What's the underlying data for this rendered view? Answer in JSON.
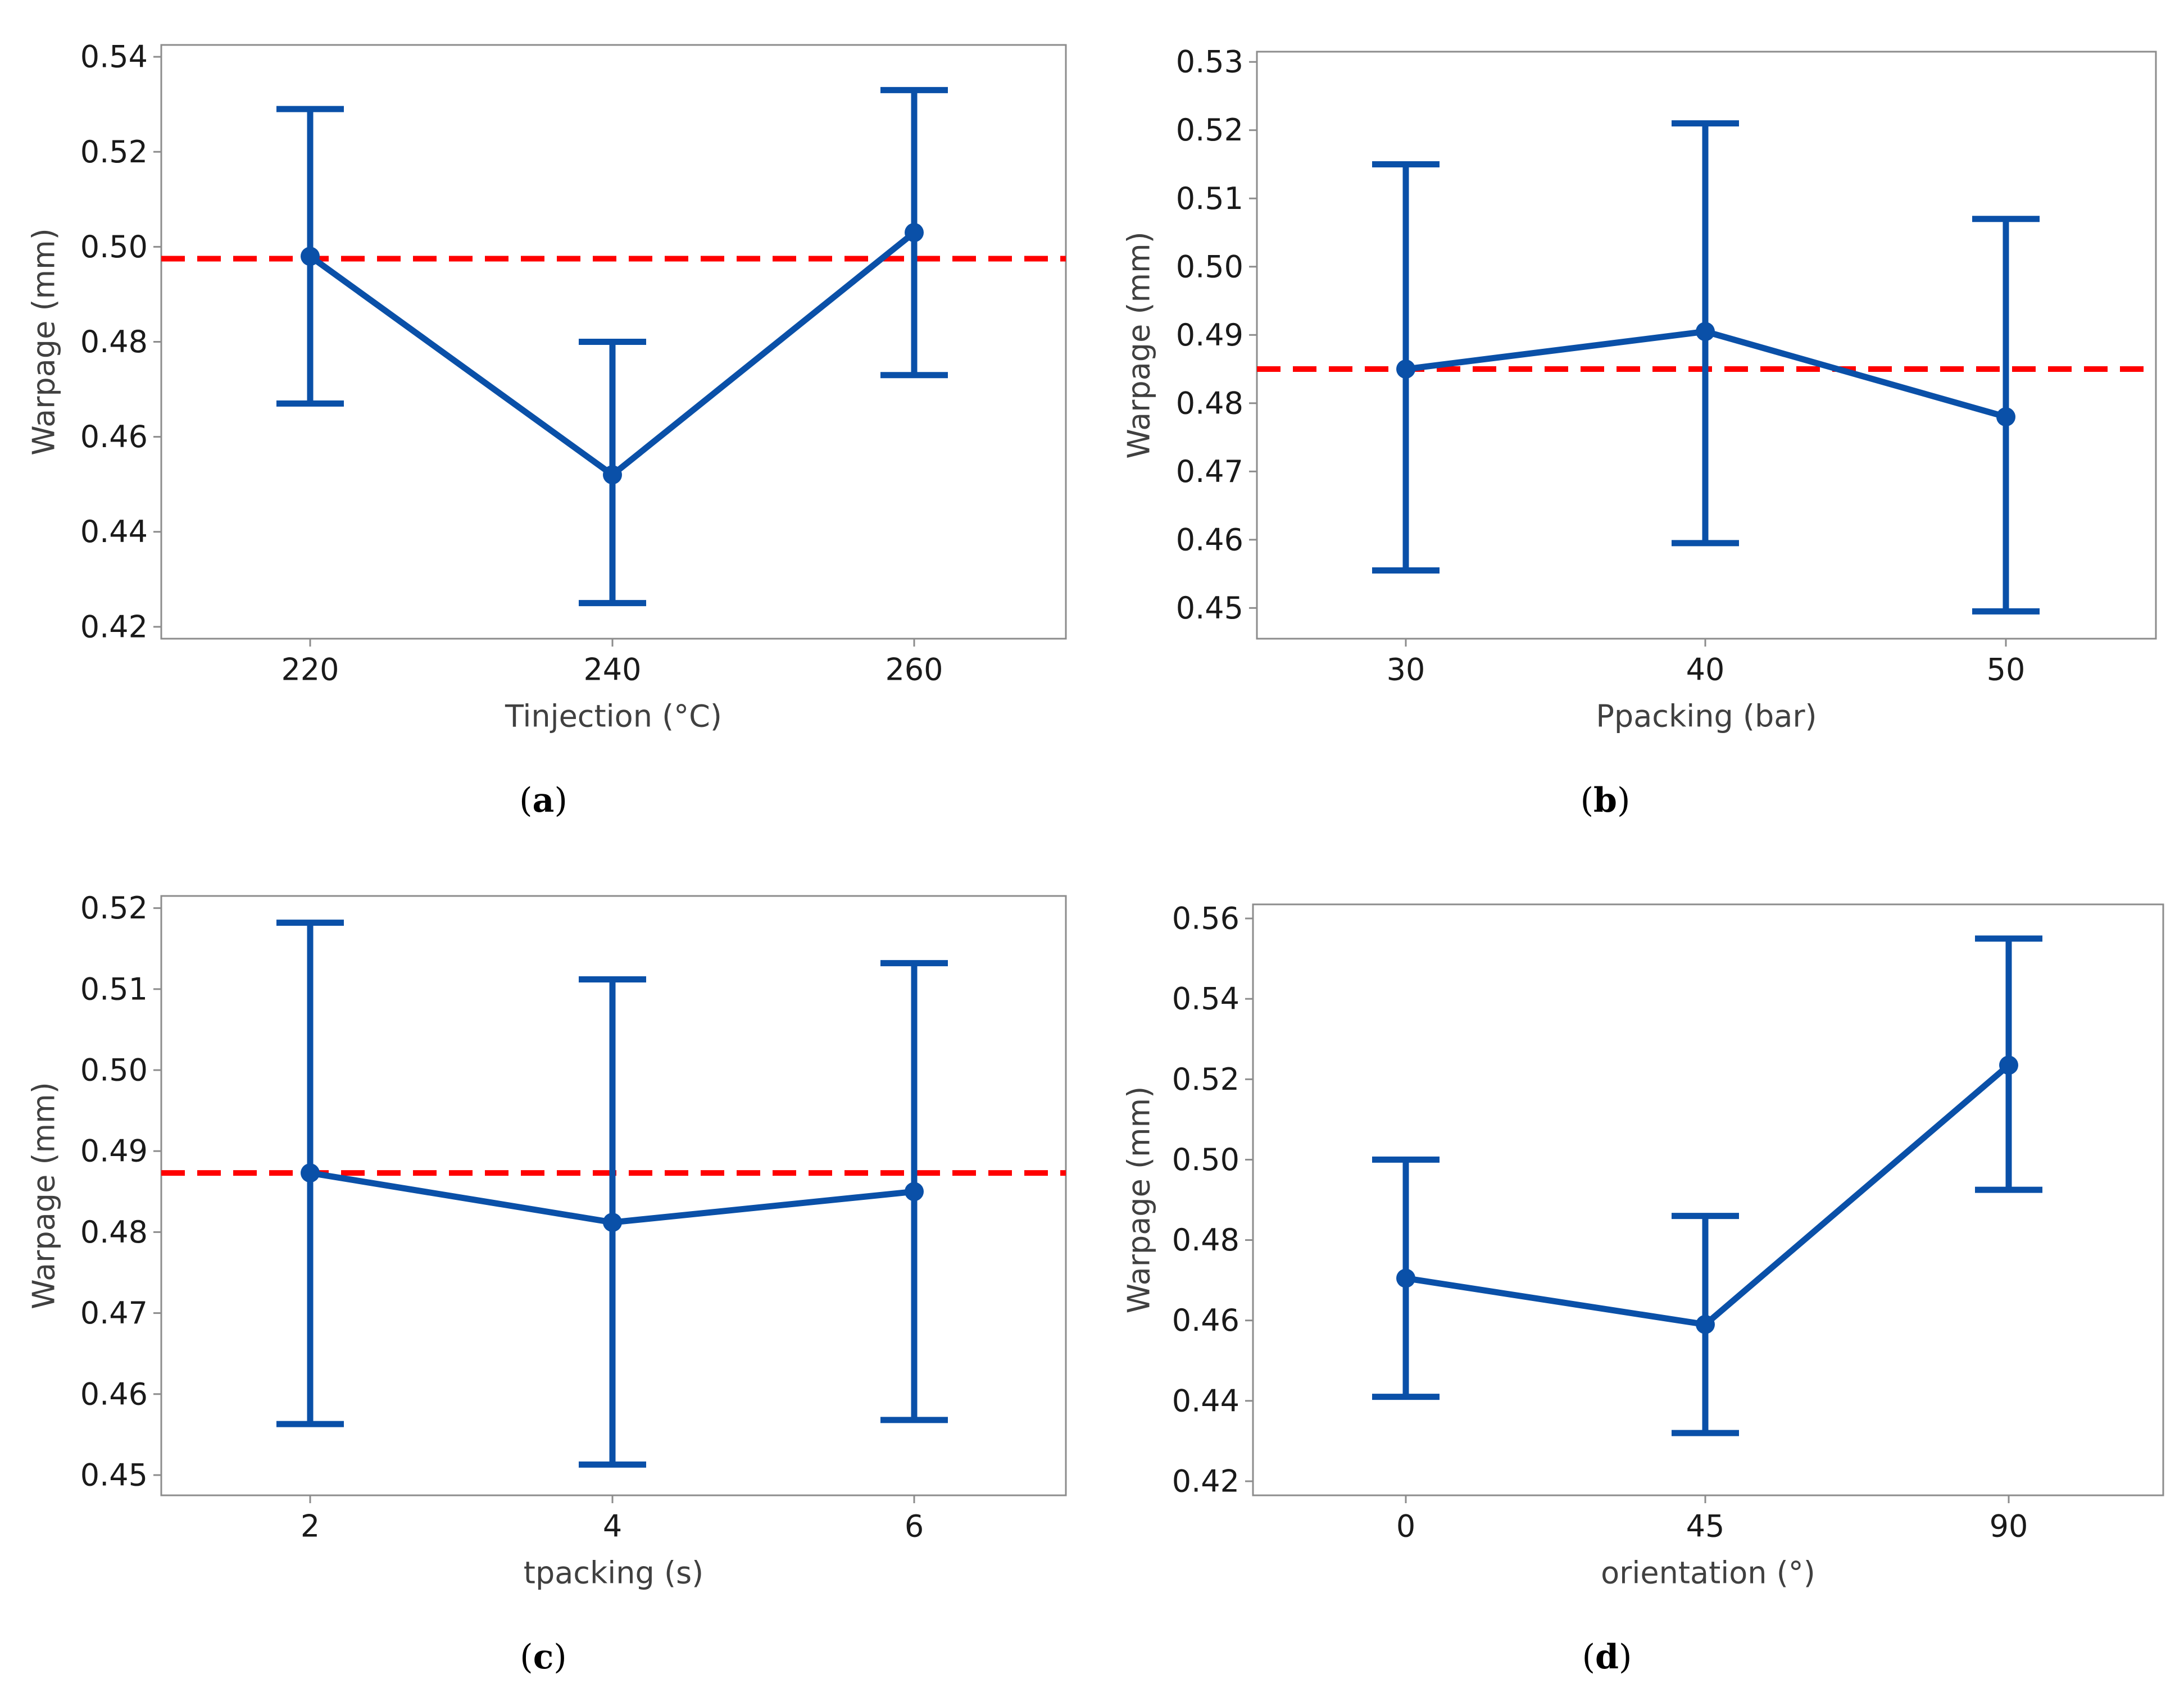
{
  "chart_data": [
    {
      "type": "line",
      "caption_letter": "a",
      "xlabel": "Tinjection (°C)",
      "ylabel": "Warpage (mm)",
      "categories": [
        "220",
        "240",
        "260"
      ],
      "series": [
        {
          "values": [
            0.498,
            0.452,
            0.503
          ],
          "error_low": [
            0.467,
            0.425,
            0.473
          ],
          "error_high": [
            0.529,
            0.48,
            0.533
          ]
        }
      ],
      "reference_line": 0.4975,
      "yticks": [
        0.42,
        0.44,
        0.46,
        0.48,
        0.5,
        0.52,
        0.54
      ],
      "ytick_labels": [
        "0.42",
        "0.44",
        "0.46",
        "0.48",
        "0.50",
        "0.52",
        "0.54"
      ],
      "ylim": [
        0.4175,
        0.5425
      ],
      "grid": false
    },
    {
      "type": "line",
      "caption_letter": "b",
      "xlabel": "Ppacking (bar)",
      "ylabel": "Warpage (mm)",
      "categories": [
        "30",
        "40",
        "50"
      ],
      "series": [
        {
          "values": [
            0.485,
            0.4905,
            0.478
          ],
          "error_low": [
            0.4555,
            0.4595,
            0.4495
          ],
          "error_high": [
            0.515,
            0.521,
            0.507
          ]
        }
      ],
      "reference_line": 0.485,
      "yticks": [
        0.45,
        0.46,
        0.47,
        0.48,
        0.49,
        0.5,
        0.51,
        0.52,
        0.53
      ],
      "ytick_labels": [
        "0.45",
        "0.46",
        "0.47",
        "0.48",
        "0.49",
        "0.50",
        "0.51",
        "0.52",
        "0.53"
      ],
      "ylim": [
        0.4455,
        0.5315
      ],
      "grid": false
    },
    {
      "type": "line",
      "caption_letter": "c",
      "xlabel": "tpacking (s)",
      "ylabel": "Warpage (mm)",
      "categories": [
        "2",
        "4",
        "6"
      ],
      "series": [
        {
          "values": [
            0.4873,
            0.4812,
            0.485
          ],
          "error_low": [
            0.4563,
            0.4513,
            0.4568
          ],
          "error_high": [
            0.5182,
            0.5112,
            0.5132
          ]
        }
      ],
      "reference_line": 0.4873,
      "yticks": [
        0.45,
        0.46,
        0.47,
        0.48,
        0.49,
        0.5,
        0.51,
        0.52
      ],
      "ytick_labels": [
        "0.45",
        "0.46",
        "0.47",
        "0.48",
        "0.49",
        "0.50",
        "0.51",
        "0.52"
      ],
      "ylim": [
        0.4475,
        0.5215
      ],
      "grid": false
    },
    {
      "type": "line",
      "caption_letter": "d",
      "xlabel": "orientation (°)",
      "ylabel": "Warpage (mm)",
      "categories": [
        "0",
        "45",
        "90"
      ],
      "series": [
        {
          "values": [
            0.4705,
            0.459,
            0.5235
          ],
          "error_low": [
            0.441,
            0.432,
            0.4925
          ],
          "error_high": [
            0.5,
            0.486,
            0.555
          ]
        }
      ],
      "reference_line": null,
      "yticks": [
        0.42,
        0.44,
        0.46,
        0.48,
        0.5,
        0.52,
        0.54,
        0.56
      ],
      "ytick_labels": [
        "0.42",
        "0.44",
        "0.46",
        "0.48",
        "0.50",
        "0.52",
        "0.54",
        "0.56"
      ],
      "ylim": [
        0.4165,
        0.5635
      ],
      "grid": false
    }
  ],
  "colors": {
    "series": "#0a50a8",
    "reference": "#ff0000",
    "frame": "#8c8c8c",
    "tick_text": "#1a1a1a",
    "axis_title": "#404040"
  }
}
